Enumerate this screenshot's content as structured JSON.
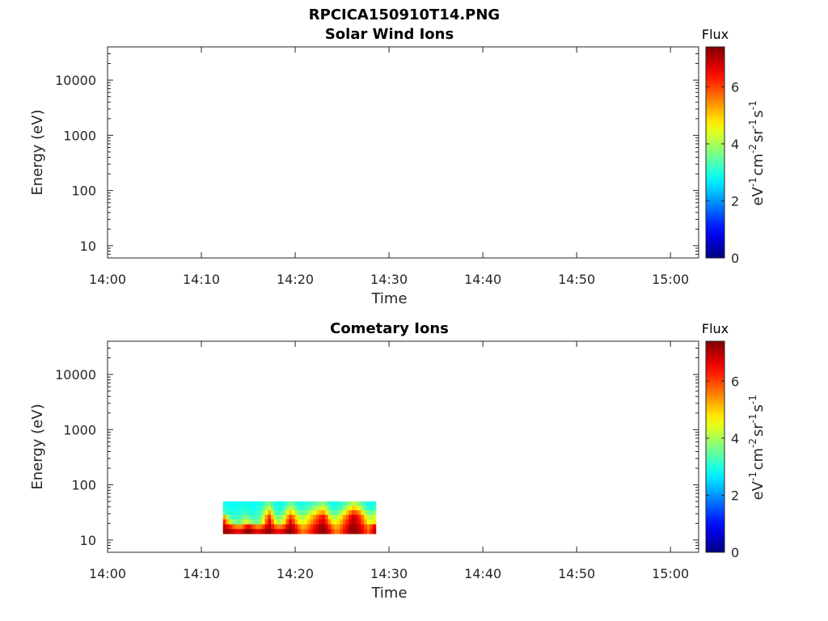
{
  "figure_title": "RPCICA150910T14.PNG",
  "chart_data": [
    {
      "type": "heatmap",
      "title": "Solar Wind Ions",
      "xlabel": "Time",
      "ylabel": "Energy (eV)",
      "x_ticks": [
        "14:00",
        "14:10",
        "14:20",
        "14:30",
        "14:40",
        "14:50",
        "15:00"
      ],
      "x_range": [
        "14:00",
        "15:03"
      ],
      "y_scale": "log",
      "y_ticks": [
        10,
        100,
        1000,
        10000
      ],
      "y_tick_labels": [
        "10",
        "100",
        "1000",
        "10000"
      ],
      "y_range": [
        6,
        40000
      ],
      "colorbar": {
        "title": "Flux",
        "label": "eV-1cm-2sr-1s-1",
        "ticks": [
          0,
          2,
          4,
          6
        ],
        "range": [
          0,
          7.4
        ],
        "colormap": "jet"
      },
      "bands": []
    },
    {
      "type": "heatmap",
      "title": "Cometary Ions",
      "xlabel": "Time",
      "ylabel": "Energy (eV)",
      "x_ticks": [
        "14:00",
        "14:10",
        "14:20",
        "14:30",
        "14:40",
        "14:50",
        "15:00"
      ],
      "x_range": [
        "14:00",
        "15:03"
      ],
      "y_scale": "log",
      "y_ticks": [
        10,
        100,
        1000,
        10000
      ],
      "y_tick_labels": [
        "10",
        "100",
        "1000",
        "10000"
      ],
      "y_range": [
        6,
        40000
      ],
      "colorbar": {
        "title": "Flux",
        "label": "eV-1cm-2sr-1s-1",
        "ticks": [
          0,
          2,
          4,
          6
        ],
        "range": [
          0,
          7.4
        ],
        "colormap": "jet"
      },
      "data_window": {
        "x": [
          "14:12.3",
          "14:28.6"
        ],
        "energy": [
          13,
          50
        ]
      },
      "bands": [
        {
          "energy": [
            13,
            16
          ],
          "flux": [
            7.1,
            7.2,
            7.0,
            6.8,
            6.6,
            6.6,
            6.8,
            7.2,
            7.3,
            7.1,
            6.8,
            6.6,
            6.7,
            6.9,
            7.2,
            7.3,
            7.0,
            6.7,
            6.5,
            6.6,
            6.9,
            7.2,
            7.3,
            7.1,
            6.6,
            6.0,
            5.6,
            5.7,
            6.0,
            6.3,
            6.6,
            7.0,
            7.2,
            7.3,
            7.1,
            6.6,
            6.0,
            5.6,
            5.6,
            6.0,
            6.4,
            6.8,
            7.2,
            7.3,
            7.2,
            7.0,
            6.6,
            6.2,
            5.8,
            6.3,
            6.9
          ]
        },
        {
          "energy": [
            16,
            19.5
          ],
          "flux": [
            6.9,
            6.6,
            6.2,
            5.8,
            5.5,
            5.4,
            5.6,
            6.2,
            6.6,
            6.2,
            5.8,
            5.5,
            5.6,
            6.0,
            6.7,
            7.0,
            6.4,
            5.8,
            5.5,
            5.6,
            6.0,
            6.7,
            7.1,
            6.8,
            6.2,
            5.6,
            5.2,
            5.3,
            5.6,
            6.0,
            6.4,
            6.8,
            7.1,
            7.2,
            6.8,
            6.2,
            5.6,
            5.2,
            5.3,
            5.7,
            6.2,
            6.6,
            7.1,
            7.2,
            7.0,
            6.8,
            6.4,
            5.9,
            5.5,
            6.0,
            6.6
          ]
        },
        {
          "energy": [
            19.5,
            24
          ],
          "flux": [
            6.2,
            5.2,
            4.2,
            3.8,
            3.6,
            3.6,
            3.9,
            4.4,
            4.2,
            3.8,
            3.6,
            3.6,
            3.9,
            4.6,
            5.8,
            6.6,
            5.6,
            4.6,
            4.0,
            4.2,
            4.8,
            5.8,
            6.6,
            6.0,
            5.2,
            4.6,
            4.4,
            4.6,
            5.0,
            5.4,
            5.8,
            6.2,
            6.6,
            6.8,
            6.2,
            5.4,
            4.8,
            4.5,
            4.8,
            5.2,
            5.8,
            6.2,
            6.7,
            7.0,
            6.8,
            6.4,
            5.8,
            5.2,
            4.6,
            4.4,
            4.8
          ]
        },
        {
          "energy": [
            24,
            29
          ],
          "flux": [
            5.2,
            4.0,
            3.4,
            3.2,
            3.2,
            3.3,
            3.5,
            3.7,
            3.5,
            3.3,
            3.2,
            3.3,
            3.6,
            4.2,
            5.4,
            6.2,
            5.0,
            4.0,
            3.6,
            3.8,
            4.4,
            5.2,
            6.0,
            5.6,
            4.8,
            4.2,
            4.0,
            4.2,
            4.6,
            5.0,
            5.4,
            5.8,
            6.2,
            6.4,
            5.8,
            4.8,
            4.2,
            4.0,
            4.3,
            4.8,
            5.4,
            5.8,
            6.4,
            6.8,
            6.6,
            6.2,
            5.6,
            4.8,
            4.2,
            4.0,
            4.4
          ]
        },
        {
          "energy": [
            29,
            35
          ],
          "flux": [
            3.4,
            3.1,
            3.0,
            3.0,
            3.0,
            3.0,
            3.1,
            3.2,
            3.1,
            3.0,
            3.0,
            3.1,
            3.3,
            3.8,
            4.6,
            5.2,
            4.2,
            3.4,
            3.2,
            3.3,
            3.8,
            4.4,
            5.0,
            4.6,
            4.0,
            3.6,
            3.5,
            3.6,
            3.9,
            4.2,
            4.6,
            4.9,
            5.2,
            5.4,
            4.8,
            3.9,
            3.5,
            3.4,
            3.6,
            4.0,
            4.5,
            5.0,
            5.6,
            6.0,
            5.8,
            5.4,
            4.8,
            4.0,
            3.6,
            3.5,
            3.8
          ]
        },
        {
          "energy": [
            35,
            42
          ],
          "flux": [
            3.0,
            3.0,
            2.9,
            2.9,
            2.9,
            3.0,
            3.0,
            3.0,
            3.0,
            2.9,
            2.9,
            3.0,
            3.1,
            3.4,
            3.9,
            4.4,
            3.6,
            3.1,
            3.0,
            3.0,
            3.3,
            3.8,
            4.2,
            3.9,
            3.4,
            3.2,
            3.1,
            3.2,
            3.4,
            3.6,
            3.9,
            4.1,
            4.3,
            4.5,
            4.0,
            3.4,
            3.1,
            3.0,
            3.2,
            3.4,
            3.8,
            4.2,
            4.6,
            5.0,
            4.8,
            4.4,
            3.9,
            3.4,
            3.1,
            3.0,
            3.2
          ]
        },
        {
          "energy": [
            42,
            50
          ],
          "flux": [
            2.9,
            2.9,
            2.8,
            2.8,
            2.8,
            2.9,
            2.9,
            2.9,
            2.9,
            2.8,
            2.8,
            2.9,
            3.0,
            3.1,
            3.4,
            3.7,
            3.2,
            2.9,
            2.9,
            2.9,
            3.0,
            3.3,
            3.6,
            3.4,
            3.1,
            3.0,
            2.9,
            3.0,
            3.1,
            3.2,
            3.4,
            3.5,
            3.7,
            3.8,
            3.4,
            3.1,
            2.9,
            2.9,
            3.0,
            3.1,
            3.3,
            3.6,
            3.9,
            4.2,
            4.0,
            3.7,
            3.4,
            3.1,
            2.9,
            2.9,
            3.0
          ]
        }
      ]
    }
  ]
}
